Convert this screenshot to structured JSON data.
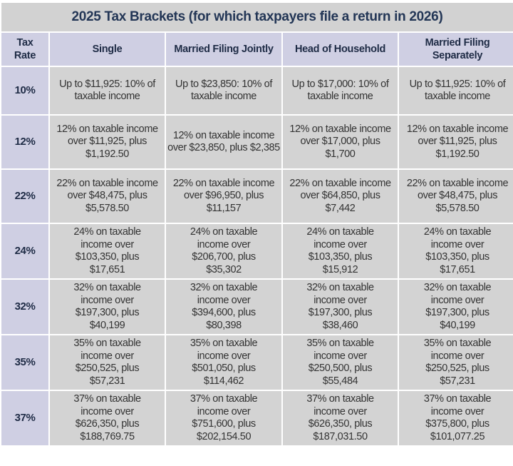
{
  "title": "2025 Tax Brackets (for which taxpayers file a return in 2026)",
  "headers": [
    "Tax Rate",
    "Single",
    "Married Filing Jointly",
    "Head of Household",
    "Married Filing Separately"
  ],
  "rows": [
    {
      "rate": "10%",
      "cells": [
        "Up to $11,925: 10% of taxable income",
        "Up to $23,850: 10% of taxable income",
        "Up to $17,000: 10% of taxable income",
        "Up to $11,925: 10% of taxable income"
      ]
    },
    {
      "rate": "12%",
      "cells": [
        "12% on taxable income over $11,925, plus $1,192.50",
        "12% on taxable income over $23,850, plus $2,385",
        "12% on taxable income over $17,000, plus $1,700",
        "12% on taxable income over $11,925, plus $1,192.50"
      ]
    },
    {
      "rate": "22%",
      "cells": [
        "22% on taxable income over $48,475, plus $5,578.50",
        "22% on taxable income over $96,950, plus $11,157",
        "22% on taxable income over $64,850, plus $7,442",
        "22% on taxable income over $48,475, plus $5,578.50"
      ]
    },
    {
      "rate": "24%",
      "cells": [
        "24% on taxable income over $103,350, plus $17,651",
        "24% on taxable income over $206,700, plus $35,302",
        "24% on taxable income over $103,350, plus $15,912",
        "24% on taxable income over $103,350, plus $17,651"
      ]
    },
    {
      "rate": "32%",
      "cells": [
        "32% on taxable income over $197,300, plus $40,199",
        "32% on taxable income over $394,600, plus $80,398",
        "32% on taxable income over $197,300, plus $38,460",
        "32% on taxable income over $197,300, plus $40,199"
      ]
    },
    {
      "rate": "35%",
      "cells": [
        "35% on taxable income over $250,525, plus $57,231",
        "35% on taxable income over $501,050, plus $114,462",
        "35% on taxable income over $250,500, plus $55,484",
        "35% on taxable income over $250,525, plus $57,231"
      ]
    },
    {
      "rate": "37%",
      "cells": [
        "37% on taxable income over $626,350, plus $188,769.75",
        "37% on taxable income over $751,600, plus $202,154.50",
        "37% on taxable income over $626,350, plus $187,031.50",
        "37% on taxable income over $375,800, plus $101,077.25"
      ]
    }
  ],
  "colors": {
    "title_bg": "#d2d2d2",
    "header_bg": "#cfcfe3",
    "cell_bg": "#d3d3d3",
    "title_text": "#233656"
  }
}
